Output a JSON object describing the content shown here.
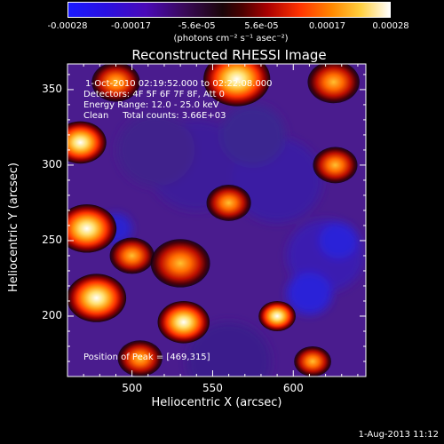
{
  "chart_data": {
    "type": "heatmap",
    "title": "Reconstructed RHESSI Image",
    "xlabel": "Heliocentric X (arcsec)",
    "ylabel": "Heliocentric Y (arcsec)",
    "xlim": [
      460,
      645
    ],
    "ylim": [
      160,
      367
    ],
    "xticks": [
      500,
      550,
      600
    ],
    "yticks": [
      200,
      250,
      300,
      350
    ],
    "colorbar": {
      "ticks": [
        "-0.00028",
        "-0.00017",
        "-5.6e-05",
        "5.6e-05",
        "0.00017",
        "0.00028"
      ],
      "tick_values": [
        -0.00028,
        -0.00017,
        -5.6e-05,
        5.6e-05,
        0.00017,
        0.00028
      ],
      "unit_text": "(photons cm⁻² s⁻¹ asec⁻²)"
    },
    "annotations": [
      "1-Oct-2010 02:19:52.000 to 02:22:08.000",
      "Detectors: 4F 5F 6F 7F 8F, Att 0",
      "Energy Range: 12.0 - 25.0 keV",
      "Clean     Total counts: 3.66E+03"
    ],
    "peak_text": "Position of Peak = [469,315]",
    "peak": {
      "x": 469,
      "y": 315
    },
    "bright_sources": [
      {
        "x": 468,
        "y": 315,
        "r": 14,
        "intensity": 1.0
      },
      {
        "x": 490,
        "y": 355,
        "r": 13,
        "intensity": 0.7
      },
      {
        "x": 565,
        "y": 357,
        "r": 18,
        "intensity": 0.78
      },
      {
        "x": 625,
        "y": 355,
        "r": 14,
        "intensity": 0.65
      },
      {
        "x": 472,
        "y": 258,
        "r": 16,
        "intensity": 0.85
      },
      {
        "x": 478,
        "y": 212,
        "r": 16,
        "intensity": 0.8
      },
      {
        "x": 500,
        "y": 240,
        "r": 12,
        "intensity": 0.7
      },
      {
        "x": 530,
        "y": 235,
        "r": 16,
        "intensity": 0.75
      },
      {
        "x": 560,
        "y": 275,
        "r": 12,
        "intensity": 0.55
      },
      {
        "x": 532,
        "y": 196,
        "r": 14,
        "intensity": 0.8
      },
      {
        "x": 590,
        "y": 200,
        "r": 10,
        "intensity": 0.95
      },
      {
        "x": 626,
        "y": 300,
        "r": 12,
        "intensity": 0.55
      },
      {
        "x": 505,
        "y": 172,
        "r": 12,
        "intensity": 0.6
      },
      {
        "x": 612,
        "y": 170,
        "r": 10,
        "intensity": 0.45
      }
    ]
  },
  "footer": {
    "date": "1-Aug-2013 11:12"
  }
}
